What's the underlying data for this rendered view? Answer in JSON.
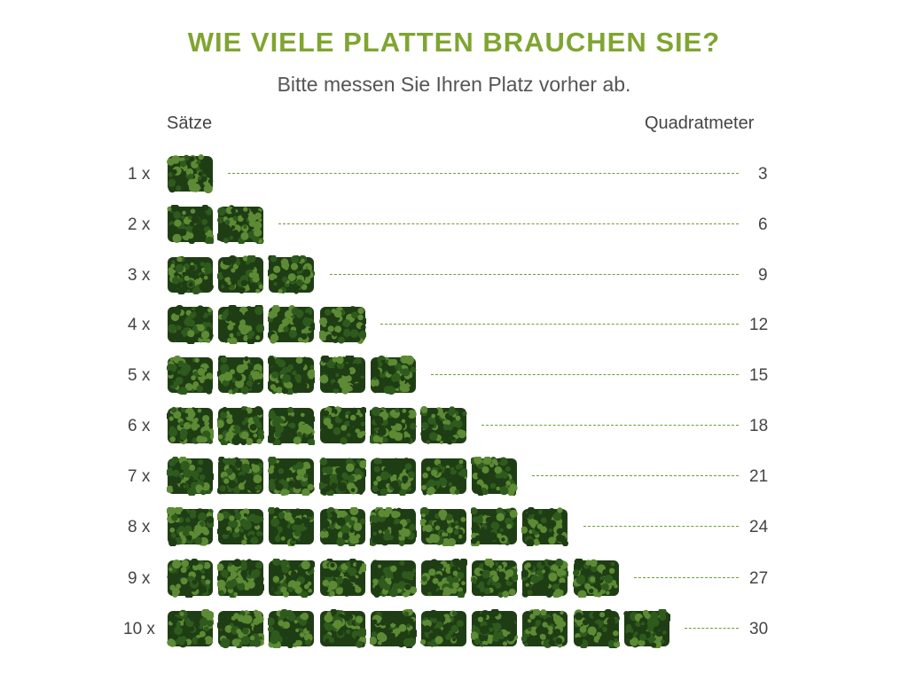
{
  "header": {
    "title": "WIE VIELE PLATTEN BRAUCHEN SIE?",
    "subtitle": "Bitte messen Sie Ihren Platz vorher ab.",
    "left_column_label": "Sätze",
    "right_column_label": "Quadratmeter"
  },
  "colors": {
    "title": "#7fa531",
    "dash_line": "#6f9a3a",
    "foliage_dark": "#1f3d14",
    "foliage_mid": "#2f5a1d",
    "foliage_light": "#5d8a34"
  },
  "icon": "hedge-panel-icon",
  "rows": [
    {
      "label": "1 x",
      "count": 1,
      "value": "3"
    },
    {
      "label": "2 x",
      "count": 2,
      "value": "6"
    },
    {
      "label": "3 x",
      "count": 3,
      "value": "9"
    },
    {
      "label": "4 x",
      "count": 4,
      "value": "12"
    },
    {
      "label": "5 x",
      "count": 5,
      "value": "15"
    },
    {
      "label": "6 x",
      "count": 6,
      "value": "18"
    },
    {
      "label": "7 x",
      "count": 7,
      "value": "21"
    },
    {
      "label": "8 x",
      "count": 8,
      "value": "24"
    },
    {
      "label": "9 x",
      "count": 9,
      "value": "27"
    },
    {
      "label": "10 x",
      "count": 10,
      "value": "30"
    }
  ]
}
